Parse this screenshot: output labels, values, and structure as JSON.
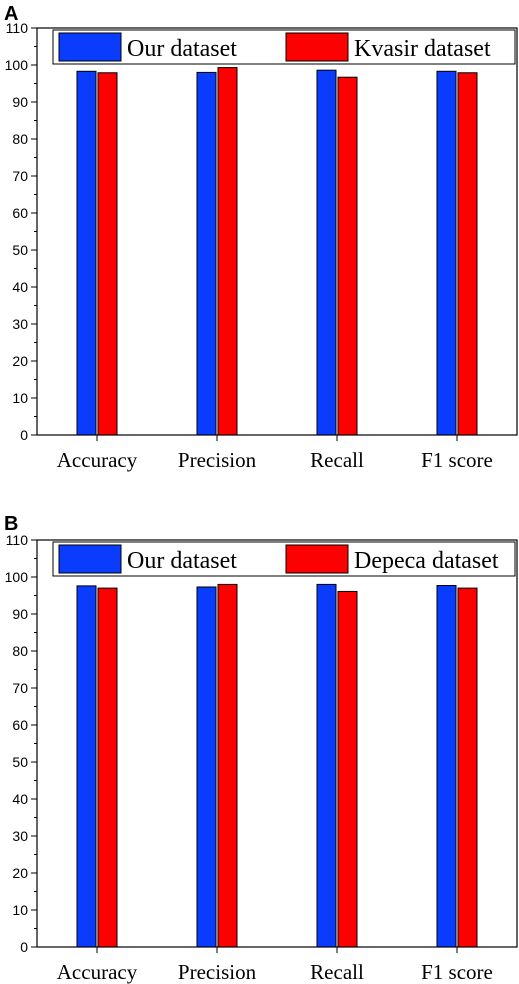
{
  "chart_data": [
    {
      "panel": "A",
      "type": "bar",
      "categories": [
        "Accuracy",
        "Precision",
        "Recall",
        "F1 score"
      ],
      "series": [
        {
          "name": "Our dataset",
          "values": [
            98.3,
            98.0,
            98.6,
            98.3
          ],
          "color": "#0a3cff"
        },
        {
          "name": "Kvasir dataset",
          "values": [
            97.9,
            99.3,
            96.7,
            97.9
          ],
          "color": "#ff0000"
        }
      ],
      "yticks": [
        0,
        10,
        20,
        30,
        40,
        50,
        60,
        70,
        80,
        90,
        100,
        110
      ],
      "ylim": [
        0,
        110
      ],
      "xlabel": "",
      "ylabel": "",
      "grid": false,
      "legend_position": "top"
    },
    {
      "panel": "B",
      "type": "bar",
      "categories": [
        "Accuracy",
        "Precision",
        "Recall",
        "F1 score"
      ],
      "series": [
        {
          "name": "Our dataset",
          "values": [
            97.6,
            97.3,
            98.0,
            97.7
          ],
          "color": "#0a3cff"
        },
        {
          "name": "Depeca dataset",
          "values": [
            97.0,
            98.0,
            96.1,
            97.0
          ],
          "color": "#ff0000"
        }
      ],
      "yticks": [
        0,
        10,
        20,
        30,
        40,
        50,
        60,
        70,
        80,
        90,
        100,
        110
      ],
      "ylim": [
        0,
        110
      ],
      "xlabel": "",
      "ylabel": "",
      "grid": false,
      "legend_position": "top"
    }
  ]
}
